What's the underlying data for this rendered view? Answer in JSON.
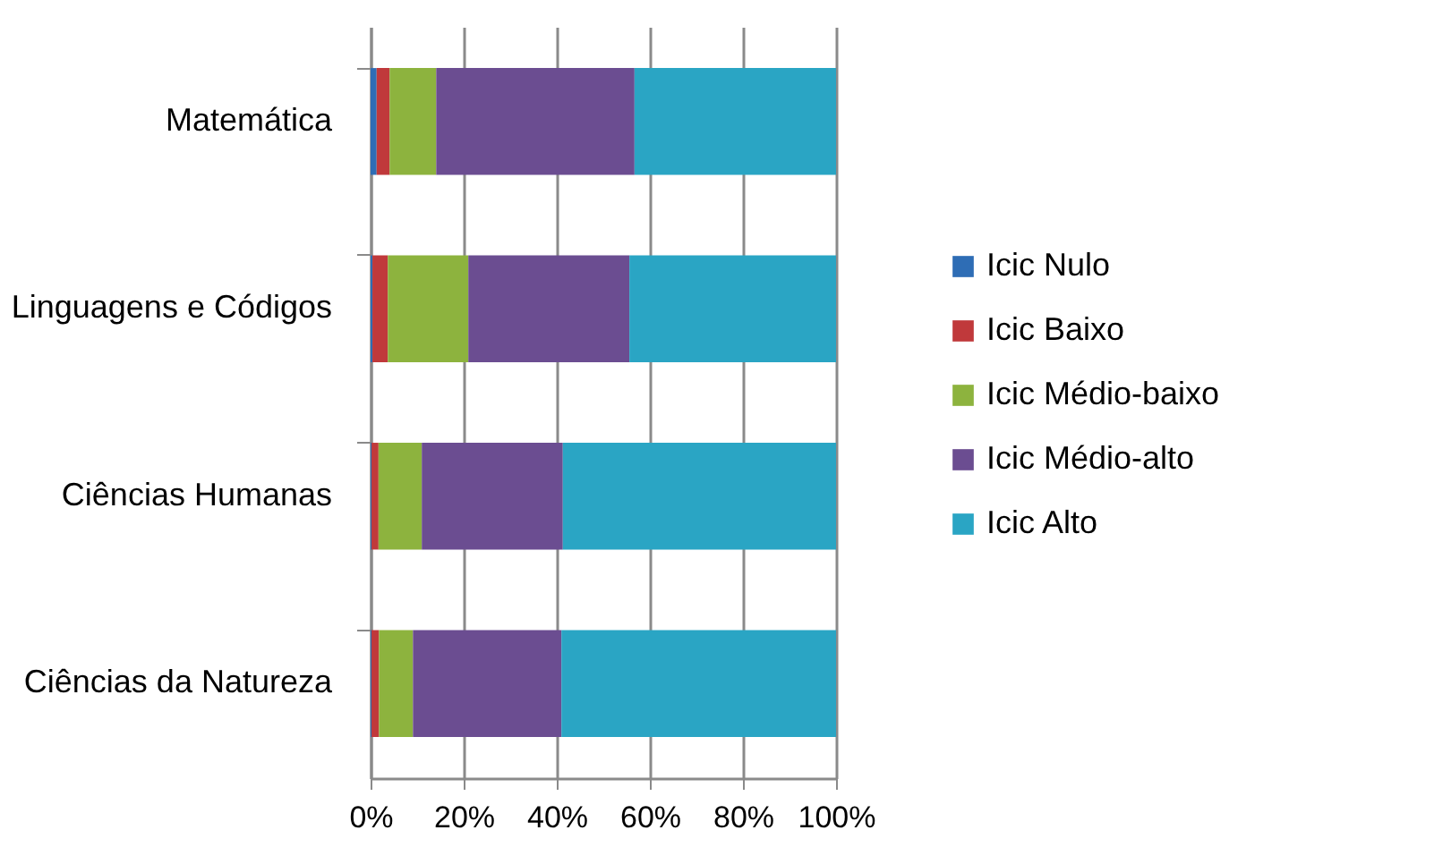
{
  "chart_data": {
    "type": "bar",
    "orientation": "horizontal",
    "stacked": true,
    "categories": [
      "Matemática",
      "Linguagens e Códigos",
      "Ciências Humanas",
      "Ciências da Natureza"
    ],
    "series": [
      {
        "name": "Icic Nulo",
        "color": "#2e6db5",
        "values": [
          1.3,
          0.4,
          0.2,
          0.2
        ]
      },
      {
        "name": "Icic Baixo",
        "color": "#c0393b",
        "values": [
          2.8,
          3.3,
          1.5,
          1.6
        ]
      },
      {
        "name": "Icic Médio-baixo",
        "color": "#8db33e",
        "values": [
          10,
          17.3,
          9.3,
          7.3
        ]
      },
      {
        "name": "Icic Médio-alto",
        "color": "#6b4d91",
        "values": [
          42.6,
          34.6,
          30.3,
          31.9
        ]
      },
      {
        "name": "Icic Alto",
        "color": "#2aa5c4",
        "values": [
          43.3,
          44.4,
          58.7,
          59.0
        ]
      }
    ],
    "xlim": [
      0,
      100
    ],
    "xticks": [
      {
        "value": 0,
        "label": "0%"
      },
      {
        "value": 20,
        "label": "20%"
      },
      {
        "value": 40,
        "label": "40%"
      },
      {
        "value": 60,
        "label": "60%"
      },
      {
        "value": 80,
        "label": "80%"
      },
      {
        "value": 100,
        "label": "100%"
      }
    ],
    "grid": "x",
    "legend": "right"
  }
}
